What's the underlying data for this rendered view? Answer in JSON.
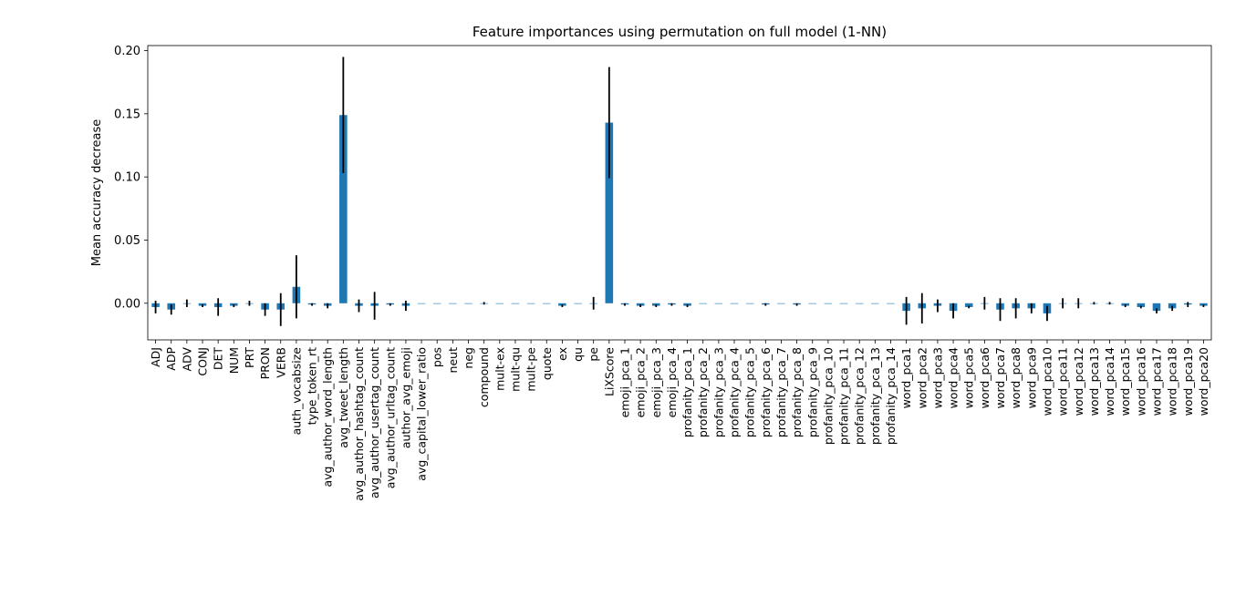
{
  "chart_data": {
    "type": "bar",
    "title": "Feature importances using permutation on full model (1-NN)",
    "xlabel": "",
    "ylabel": "Mean accuracy decrease",
    "ylim": [
      -0.029,
      0.204
    ],
    "yticks": [
      0.0,
      0.05,
      0.1,
      0.15,
      0.2
    ],
    "ytick_labels": [
      "0.00",
      "0.05",
      "0.10",
      "0.15",
      "0.20"
    ],
    "grid": false,
    "legend": "none",
    "bar_color": "#1f77b4",
    "error_color": "#000000",
    "categories": [
      "ADJ",
      "ADP",
      "ADV",
      "CONJ",
      "DET",
      "NUM",
      "PRT",
      "PRON",
      "VERB",
      "auth_vocabsize",
      "type_token_rt",
      "avg_author_word_length",
      "avg_tweet_length",
      "avg_author_hashtag_count",
      "avg_author_usertag_count",
      "avg_author_urltag_count",
      "author_avg_emoji",
      "avg_capital_lower_ratio",
      "pos",
      "neut",
      "neg",
      "compound",
      "mult-ex",
      "mult-qu",
      "mult-pe",
      "quote",
      "ex",
      "qu",
      "pe",
      "LiXScore",
      "emoji_pca_1",
      "emoji_pca_2",
      "emoji_pca_3",
      "emoji_pca_4",
      "profanity_pca_1",
      "profanity_pca_2",
      "profanity_pca_3",
      "profanity_pca_4",
      "profanity_pca_5",
      "profanity_pca_6",
      "profanity_pca_7",
      "profanity_pca_8",
      "profanity_pca_9",
      "profanity_pca_10",
      "profanity_pca_11",
      "profanity_pca_12",
      "profanity_pca_13",
      "profanity_pca_14",
      "word_pca1",
      "word_pca2",
      "word_pca3",
      "word_pca4",
      "word_pca5",
      "word_pca6",
      "word_pca7",
      "word_pca8",
      "word_pca9",
      "word_pca10",
      "word_pca11",
      "word_pca12",
      "word_pca13",
      "word_pca14",
      "word_pca15",
      "word_pca16",
      "word_pca17",
      "word_pca18",
      "word_pca19",
      "word_pca20"
    ],
    "values": [
      -0.003,
      -0.005,
      0.0,
      -0.002,
      -0.003,
      -0.002,
      0.0,
      -0.005,
      -0.005,
      0.013,
      -0.001,
      -0.002,
      0.149,
      -0.002,
      -0.002,
      -0.001,
      -0.002,
      0.0,
      0.0,
      0.0,
      0.0,
      0.0,
      0.0,
      0.0,
      0.0,
      0.0,
      -0.002,
      0.0,
      0.0,
      0.143,
      -0.001,
      -0.002,
      -0.002,
      -0.001,
      -0.002,
      0.0,
      0.0,
      0.0,
      0.0,
      -0.001,
      0.0,
      -0.001,
      0.0,
      0.0,
      0.0,
      0.0,
      0.0,
      0.0,
      -0.006,
      -0.004,
      -0.002,
      -0.006,
      -0.003,
      0.0,
      -0.005,
      -0.004,
      -0.004,
      -0.008,
      0.0,
      0.0,
      0.0,
      0.0,
      -0.002,
      -0.003,
      -0.006,
      -0.004,
      -0.001,
      -0.002
    ],
    "errors": [
      0.005,
      0.004,
      0.003,
      0.001,
      0.007,
      0.001,
      0.002,
      0.005,
      0.013,
      0.025,
      0.001,
      0.002,
      0.046,
      0.005,
      0.011,
      0.001,
      0.004,
      0.0,
      0.0,
      0.0,
      0.0,
      0.001,
      0.0,
      0.0,
      0.0,
      0.0,
      0.001,
      0.0,
      0.005,
      0.044,
      0.001,
      0.001,
      0.001,
      0.001,
      0.001,
      0.0,
      0.0,
      0.0,
      0.0,
      0.001,
      0.0,
      0.001,
      0.0,
      0.0,
      0.0,
      0.0,
      0.0,
      0.0,
      0.011,
      0.012,
      0.005,
      0.006,
      0.001,
      0.005,
      0.009,
      0.008,
      0.004,
      0.006,
      0.004,
      0.004,
      0.001,
      0.001,
      0.001,
      0.001,
      0.002,
      0.002,
      0.002,
      0.001
    ]
  }
}
